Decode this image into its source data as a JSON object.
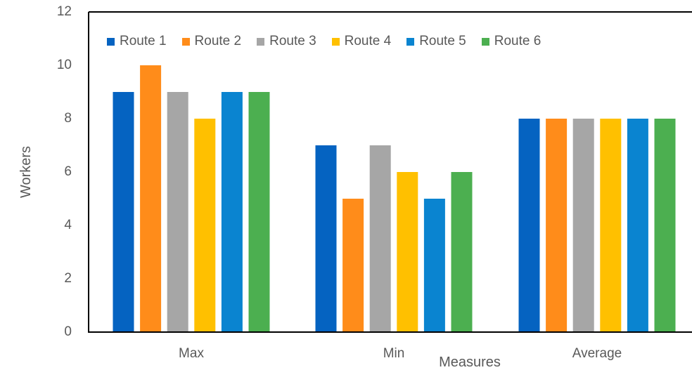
{
  "chart_data": {
    "type": "bar",
    "title": "",
    "xlabel": "Measures",
    "ylabel": "Workers",
    "ylim": [
      0,
      12
    ],
    "yticks": [
      "0",
      "2",
      "4",
      "6",
      "8",
      "10",
      "12"
    ],
    "categories": [
      "Max",
      "Min",
      "Average"
    ],
    "series": [
      {
        "name": "Route 1",
        "color": "#0563C1",
        "values": [
          9,
          7,
          8
        ]
      },
      {
        "name": "Route 2",
        "color": "#FF8C1A",
        "values": [
          10,
          5,
          8
        ]
      },
      {
        "name": "Route 3",
        "color": "#A6A6A6",
        "values": [
          9,
          7,
          8
        ]
      },
      {
        "name": "Route 4",
        "color": "#FFC000",
        "values": [
          8,
          6,
          8
        ]
      },
      {
        "name": "Route 5",
        "color": "#0A84D0",
        "values": [
          9,
          5,
          8
        ]
      },
      {
        "name": "Route 6",
        "color": "#4CAF50",
        "values": [
          9,
          6,
          8
        ]
      }
    ],
    "grid": false,
    "legend_position": "top"
  }
}
